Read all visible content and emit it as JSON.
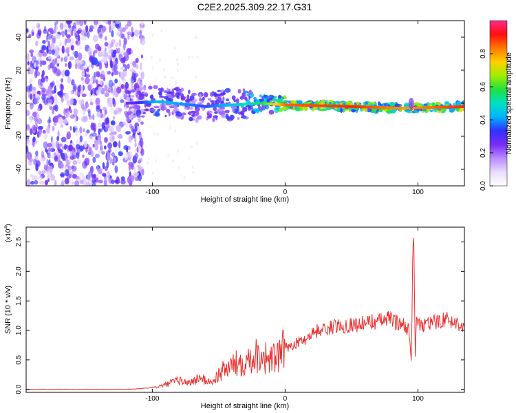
{
  "title": "C2E2.2025.309.22.17.G31",
  "colors": {
    "line": "#e8302e",
    "frame": "#000000",
    "scatter": "#6a1fd8",
    "colorbar": [
      "#ffffff",
      "#e8dcff",
      "#b98cff",
      "#7a2cf5",
      "#3030ff",
      "#00b4ff",
      "#00e0c0",
      "#20e040",
      "#a0ee00",
      "#ffd000",
      "#ff7a00",
      "#ff1010",
      "#ff2a8a"
    ]
  },
  "chart_data": [
    {
      "type": "heatmap",
      "name": "spectrogram",
      "xlabel": "Height of straight line (km)",
      "ylabel": "Frequency (Hz)",
      "xlim": [
        -195,
        135
      ],
      "ylim": [
        -50,
        50
      ],
      "x_ticks": [
        -100,
        0,
        100
      ],
      "y_ticks": [
        -40,
        -20,
        0,
        20,
        40
      ],
      "x_tick_labels": [
        "-100",
        "0",
        "100"
      ],
      "y_tick_labels": [
        "-40",
        "-20",
        "0",
        "20",
        "40"
      ],
      "colorbar": {
        "label": "Normalized spectral amplitude",
        "range": [
          0,
          1
        ],
        "ticks": [
          0.0,
          0.2,
          0.4,
          0.6,
          0.8
        ],
        "tick_labels": [
          "0.0",
          "0.2",
          "0.4",
          "0.6",
          "0.8"
        ]
      },
      "features": {
        "noise_region_x": [
          -195,
          -115
        ],
        "signal_line": [
          {
            "x": -120,
            "freq": 0,
            "amp": 0.25
          },
          {
            "x": -95,
            "freq": 1,
            "amp": 0.45
          },
          {
            "x": -60,
            "freq": -2,
            "amp": 0.35
          },
          {
            "x": -20,
            "freq": 0,
            "amp": 0.55
          },
          {
            "x": 0,
            "freq": -1,
            "amp": 0.85
          },
          {
            "x": 50,
            "freq": -2,
            "amp": 0.9
          },
          {
            "x": 90,
            "freq": -3,
            "amp": 0.8
          },
          {
            "x": 135,
            "freq": -2,
            "amp": 0.9
          }
        ]
      }
    },
    {
      "type": "line",
      "name": "snr",
      "xlabel": "Height of straight line (km)",
      "ylabel": "SNR (10 * v/v)",
      "y_scale_label": "(x10",
      "y_scale_exp": "4",
      "xlim": [
        -195,
        135
      ],
      "ylim": [
        -0.05,
        2.75
      ],
      "x_ticks": [
        -100,
        0,
        100
      ],
      "y_ticks": [
        0.0,
        0.5,
        1.0,
        1.5,
        2.0,
        2.5
      ],
      "x_tick_labels": [
        "-100",
        "0",
        "100"
      ],
      "y_tick_labels": [
        "0.0",
        "0.5",
        "1.0",
        "1.5",
        "2.0",
        "2.5"
      ],
      "x": [
        -195,
        -150,
        -120,
        -110,
        -100,
        -95,
        -90,
        -85,
        -80,
        -75,
        -70,
        -65,
        -60,
        -55,
        -50,
        -45,
        -40,
        -35,
        -30,
        -25,
        -20,
        -15,
        -10,
        -5,
        0,
        5,
        10,
        15,
        20,
        25,
        30,
        35,
        40,
        45,
        50,
        55,
        60,
        65,
        70,
        75,
        80,
        85,
        90,
        93,
        95,
        96,
        97,
        98,
        99,
        100,
        102,
        105,
        110,
        115,
        120,
        125,
        130,
        135
      ],
      "values": [
        0.0,
        0.0,
        0.0,
        0.01,
        0.03,
        0.05,
        0.08,
        0.12,
        0.15,
        0.12,
        0.12,
        0.2,
        0.15,
        0.12,
        0.25,
        0.35,
        0.4,
        0.45,
        0.5,
        0.55,
        0.6,
        0.55,
        0.5,
        0.55,
        0.7,
        0.75,
        0.8,
        0.85,
        0.95,
        1.0,
        1.02,
        1.05,
        1.08,
        1.08,
        1.1,
        1.1,
        1.12,
        1.15,
        1.15,
        1.18,
        1.2,
        1.12,
        1.1,
        1.0,
        0.5,
        2.0,
        2.65,
        0.6,
        1.3,
        1.1,
        1.05,
        1.1,
        1.12,
        1.15,
        1.2,
        1.15,
        1.12,
        1.1
      ]
    }
  ]
}
